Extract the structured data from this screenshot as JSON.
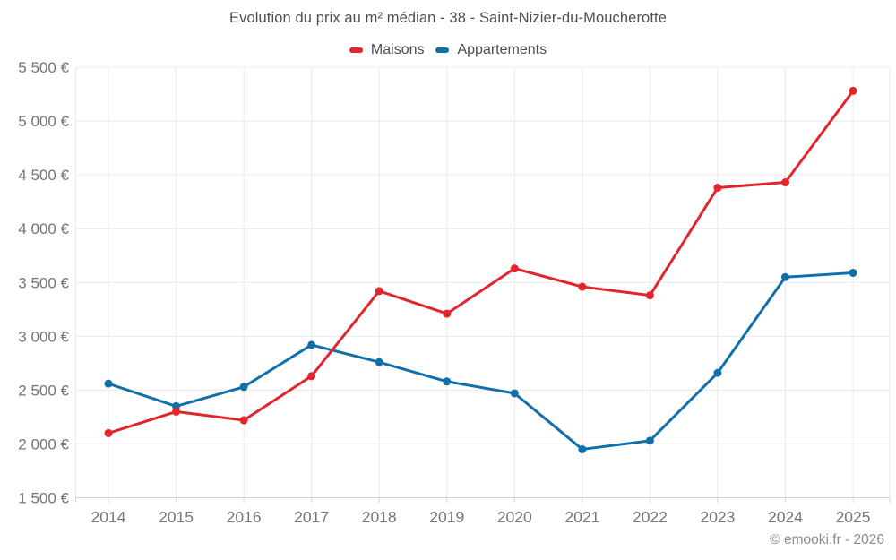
{
  "watermark": {
    "text": "© emooki.fr - 2026"
  },
  "legend": {
    "items": [
      {
        "label": "Maisons",
        "color": "#e1252b"
      },
      {
        "label": "Appartements",
        "color": "#1170a9"
      }
    ]
  },
  "colors": {
    "background": "#ffffff",
    "grid": "#e9e9e9",
    "axis": "#d4d4d4",
    "tick_text": "#757575",
    "title_text": "#4f4f4f",
    "legend_text": "#4d4d4d",
    "watermark_text": "#8c8c8c",
    "maisons": "#e1252b",
    "appartements": "#1170a9"
  },
  "chart_data": {
    "type": "line",
    "title": "Evolution du prix au m² médian - 38 - Saint-Nizier-du-Moucherotte",
    "x": [
      "2014",
      "2015",
      "2016",
      "2017",
      "2018",
      "2019",
      "2020",
      "2021",
      "2022",
      "2023",
      "2024",
      "2025"
    ],
    "series": [
      {
        "name": "Maisons",
        "color": "#e1252b",
        "values": [
          2100,
          2300,
          2220,
          2630,
          3420,
          3210,
          3630,
          3460,
          3380,
          4380,
          4430,
          5280
        ]
      },
      {
        "name": "Appartements",
        "color": "#1170a9",
        "values": [
          2560,
          2350,
          2530,
          2920,
          2760,
          2580,
          2470,
          1950,
          2030,
          2660,
          3550,
          3590
        ]
      }
    ],
    "xlabel": "",
    "ylabel": "",
    "ylim": [
      1500,
      5500
    ],
    "yticks": [
      1500,
      2000,
      2500,
      3000,
      3500,
      4000,
      4500,
      5000,
      5500
    ],
    "ytick_labels": [
      "1 500 €",
      "2 000 €",
      "2 500 €",
      "3 000 €",
      "3 500 €",
      "4 000 €",
      "4 500 €",
      "5 000 €",
      "5 500 €"
    ],
    "grid": true,
    "legend_position": "top-center",
    "marker_radius": 4.5,
    "line_width": 3
  }
}
